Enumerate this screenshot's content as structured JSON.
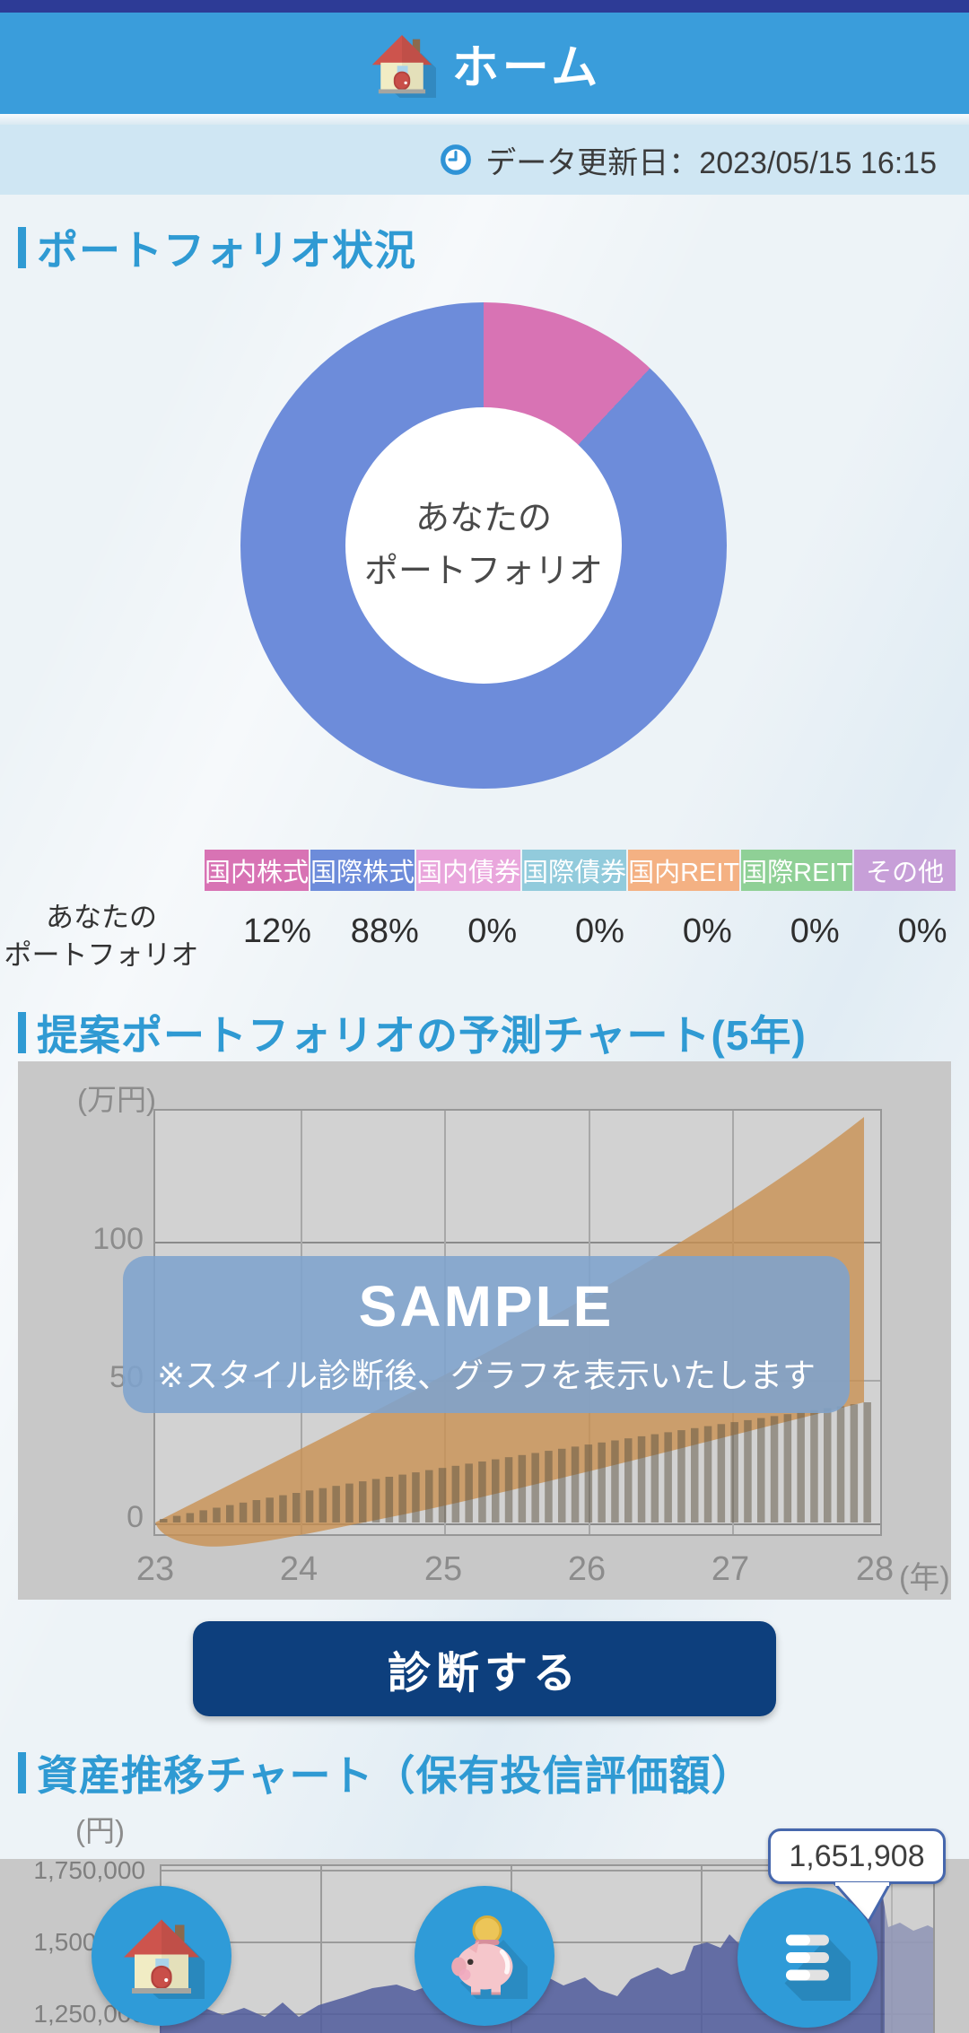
{
  "colors": {
    "status_bar": "#2d3b96",
    "app_bar": "#3a9ddb",
    "accent": "#2f9ad3",
    "update_band": "#cfe6f3",
    "button": "#0d3f7d",
    "nav_circle": "#2f9bd8",
    "sample_overlay": "#7ea3cd",
    "forecast_fan": "#c98f4f",
    "asset_area": "#505c9c"
  },
  "app_bar": {
    "icon": "house-icon",
    "title": "ホーム"
  },
  "update_bar": {
    "icon": "clock-icon",
    "label": "データ更新日：2023/05/15 16:15"
  },
  "portfolio_section": {
    "title": "ポートフォリオ状況",
    "donut_center": [
      "あなたの",
      "ポートフォリオ"
    ]
  },
  "allocation_table": {
    "row_label": [
      "あなたの",
      "ポートフォリオ"
    ],
    "columns": [
      {
        "label": "国内株式",
        "color": "#d873b4",
        "value": "12%"
      },
      {
        "label": "国際株式",
        "color": "#6d8cda",
        "value": "88%"
      },
      {
        "label": "国内債券",
        "color": "#e9a6dc",
        "value": "0%"
      },
      {
        "label": "国際債券",
        "color": "#92cbdc",
        "value": "0%"
      },
      {
        "label": "国内REIT",
        "color": "#f4b183",
        "value": "0%"
      },
      {
        "label": "国際REIT",
        "color": "#8fd096",
        "value": "0%"
      },
      {
        "label": "その他",
        "color": "#c79fd8",
        "value": "0%"
      }
    ]
  },
  "forecast_section": {
    "title": "提案ポートフォリオの予測チャート(5年)",
    "y_unit": "(万円)",
    "x_unit": "(年)",
    "y_ticks": [
      "100",
      "50",
      "0"
    ],
    "x_ticks": [
      "23",
      "24",
      "25",
      "26",
      "27",
      "28"
    ],
    "overlay_title": "SAMPLE",
    "overlay_note": "※スタイル診断後、グラフを表示いたします",
    "button_label": "診断する"
  },
  "asset_section": {
    "title": "資産推移チャート（保有投信評価額）",
    "y_unit": "(円)",
    "y_ticks": [
      "1,750,000",
      "1,500,000",
      "1,250,000"
    ],
    "tooltip_value": "1,651,908"
  },
  "nav": {
    "items": [
      {
        "icon": "home-icon"
      },
      {
        "icon": "piggy-bank-icon"
      },
      {
        "icon": "menu-icon"
      }
    ]
  },
  "chart_data": [
    {
      "type": "pie",
      "title": "あなたのポートフォリオ",
      "categories": [
        "国内株式",
        "国際株式",
        "国内債券",
        "国際債券",
        "国内REIT",
        "国際REIT",
        "その他"
      ],
      "values": [
        12,
        88,
        0,
        0,
        0,
        0,
        0
      ],
      "colors": [
        "#d873b4",
        "#6d8cda",
        "#e9a6dc",
        "#92cbdc",
        "#f4b183",
        "#8fd096",
        "#c79fd8"
      ],
      "donut": true,
      "center_label": "あなたの ポートフォリオ"
    },
    {
      "type": "area",
      "title": "提案ポートフォリオの予測チャート(5年)",
      "x": [
        23,
        24,
        25,
        26,
        27,
        28
      ],
      "x_unit": "年",
      "y_unit": "万円",
      "ylim": [
        -10,
        145
      ],
      "series": [
        {
          "name": "forecast-band-upper-estimate",
          "values": [
            0,
            32,
            62,
            90,
            118,
            145
          ]
        },
        {
          "name": "forecast-band-lower-estimate",
          "values": [
            0,
            -6,
            -4,
            8,
            22,
            42
          ]
        },
        {
          "name": "principal-bars-estimate",
          "values": [
            0,
            9,
            18,
            26,
            34,
            42
          ]
        }
      ],
      "overlay_text": [
        "SAMPLE",
        "※スタイル診断後、グラフを表示いたします"
      ],
      "grid": true,
      "legend": false
    },
    {
      "type": "area",
      "title": "資産推移チャート（保有投信評価額）",
      "y_unit": "円",
      "y_ticks": [
        1750000,
        1500000,
        1250000
      ],
      "latest_value": 1651908,
      "values_estimated": [
        1110000,
        1140000,
        1195000,
        1170000,
        1215000,
        1190000,
        1240000,
        1270000,
        1255000,
        1300000,
        1280000,
        1330000,
        1355000,
        1335000,
        1400000,
        1420000,
        1460000,
        1500000,
        1475000,
        1540000,
        1580000,
        1651908
      ],
      "grid": true,
      "legend": false
    }
  ]
}
